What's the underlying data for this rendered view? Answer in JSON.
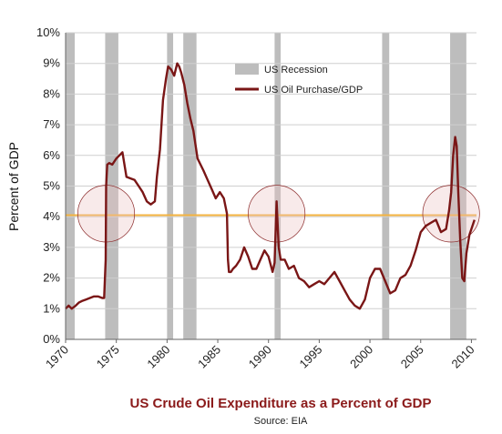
{
  "chart_data": {
    "type": "line",
    "title": "US Crude Oil Expenditure as a Percent of GDP",
    "subtitle": "Source: EIA",
    "ylabel": "Percent of GDP",
    "xlabel": "",
    "xlim": [
      1970,
      2010.5
    ],
    "ylim": [
      0,
      10
    ],
    "x_ticks": [
      1970,
      1975,
      1980,
      1985,
      1990,
      1995,
      2000,
      2005,
      2010
    ],
    "y_ticks": [
      0,
      1,
      2,
      3,
      4,
      5,
      6,
      7,
      8,
      9,
      10
    ],
    "y_tick_labels": [
      "0%",
      "1%",
      "2%",
      "3%",
      "4%",
      "5%",
      "6%",
      "7%",
      "8%",
      "9%",
      "10%"
    ],
    "grid": "horizontal",
    "legend": {
      "position": "top-center",
      "entries": [
        "US Recession",
        "US Oil Purchase/GDP"
      ]
    },
    "recessions": [
      {
        "start": 1970.0,
        "end": 1970.9
      },
      {
        "start": 1973.9,
        "end": 1975.2
      },
      {
        "start": 1980.0,
        "end": 1980.6
      },
      {
        "start": 1981.6,
        "end": 1982.9
      },
      {
        "start": 1990.6,
        "end": 1991.2
      },
      {
        "start": 2001.2,
        "end": 2001.9
      },
      {
        "start": 2007.9,
        "end": 2009.5
      }
    ],
    "reference_line": {
      "y": 4.05,
      "color": "#f3b340"
    },
    "highlight_circles": [
      {
        "x": 1974.0,
        "y": 4.1,
        "radius_years": 2.8
      },
      {
        "x": 1990.8,
        "y": 4.1,
        "radius_years": 2.8
      },
      {
        "x": 2008.0,
        "y": 4.1,
        "radius_years": 2.8
      }
    ],
    "series": [
      {
        "name": "US Oil Purchase/GDP",
        "color": "#7a1616",
        "x": [
          1970.0,
          1970.3,
          1970.6,
          1971.0,
          1971.3,
          1971.6,
          1972.0,
          1972.4,
          1972.8,
          1973.2,
          1973.6,
          1973.8,
          1973.95,
          1974.0,
          1974.1,
          1974.3,
          1974.6,
          1975.0,
          1975.3,
          1975.6,
          1976.0,
          1976.4,
          1976.8,
          1977.2,
          1977.6,
          1978.0,
          1978.4,
          1978.8,
          1979.0,
          1979.3,
          1979.6,
          1979.9,
          1980.1,
          1980.4,
          1980.7,
          1981.0,
          1981.2,
          1981.4,
          1981.7,
          1982.0,
          1982.3,
          1982.6,
          1983.0,
          1983.3,
          1983.6,
          1984.0,
          1984.4,
          1984.8,
          1985.2,
          1985.6,
          1985.9,
          1986.0,
          1986.1,
          1986.3,
          1986.5,
          1986.8,
          1987.2,
          1987.6,
          1988.0,
          1988.4,
          1988.8,
          1989.2,
          1989.6,
          1990.0,
          1990.4,
          1990.6,
          1990.8,
          1991.0,
          1991.2,
          1991.6,
          1992.0,
          1992.5,
          1993.0,
          1993.5,
          1994.0,
          1994.5,
          1995.0,
          1995.5,
          1996.0,
          1996.5,
          1997.0,
          1997.5,
          1998.0,
          1998.5,
          1999.0,
          1999.5,
          2000.0,
          2000.5,
          2001.0,
          2001.5,
          2002.0,
          2002.5,
          2003.0,
          2003.5,
          2004.0,
          2004.5,
          2005.0,
          2005.5,
          2006.0,
          2006.5,
          2007.0,
          2007.5,
          2007.8,
          2008.0,
          2008.2,
          2008.4,
          2008.55,
          2008.7,
          2008.9,
          2009.1,
          2009.3,
          2009.5,
          2009.8,
          2010.0,
          2010.3
        ],
        "values": [
          1.0,
          1.1,
          1.0,
          1.1,
          1.2,
          1.25,
          1.3,
          1.35,
          1.4,
          1.4,
          1.35,
          1.35,
          2.6,
          5.0,
          5.7,
          5.75,
          5.7,
          5.9,
          6.0,
          6.1,
          5.3,
          5.25,
          5.2,
          5.0,
          4.8,
          4.5,
          4.4,
          4.5,
          5.3,
          6.2,
          7.8,
          8.5,
          8.9,
          8.8,
          8.6,
          9.0,
          8.9,
          8.7,
          8.3,
          7.7,
          7.2,
          6.8,
          5.9,
          5.7,
          5.5,
          5.2,
          4.9,
          4.6,
          4.8,
          4.6,
          4.1,
          2.6,
          2.2,
          2.2,
          2.3,
          2.4,
          2.6,
          3.0,
          2.7,
          2.3,
          2.3,
          2.6,
          2.9,
          2.7,
          2.2,
          2.5,
          4.5,
          3.0,
          2.6,
          2.6,
          2.3,
          2.4,
          2.0,
          1.9,
          1.7,
          1.8,
          1.9,
          1.8,
          2.0,
          2.2,
          1.9,
          1.6,
          1.3,
          1.1,
          1.0,
          1.3,
          2.0,
          2.3,
          2.3,
          1.9,
          1.5,
          1.6,
          2.0,
          2.1,
          2.4,
          2.9,
          3.5,
          3.7,
          3.8,
          3.9,
          3.5,
          3.6,
          4.2,
          4.8,
          6.0,
          6.6,
          6.3,
          4.8,
          3.2,
          2.0,
          1.9,
          2.8,
          3.4,
          3.6,
          3.9
        ]
      }
    ]
  }
}
